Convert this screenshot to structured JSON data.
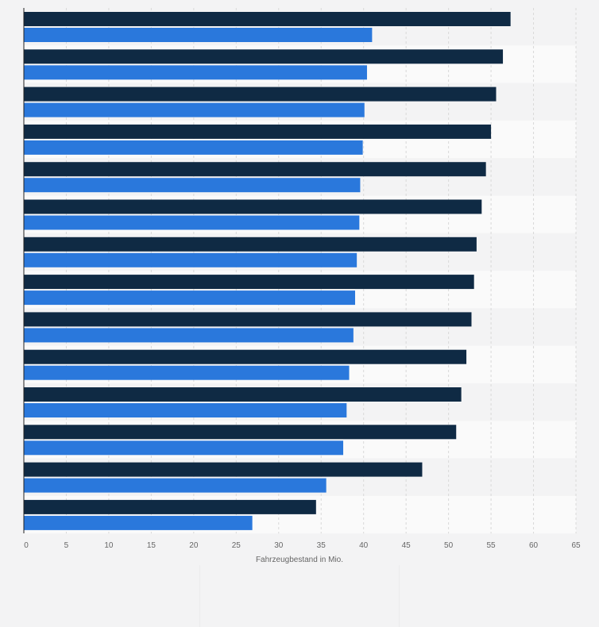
{
  "chart_data": {
    "type": "bar",
    "orientation": "horizontal",
    "xlabel": "Fahrzeugbestand in Mio.",
    "xlim": [
      0,
      65
    ],
    "x_ticks": [
      0,
      5,
      10,
      15,
      20,
      25,
      30,
      35,
      40,
      45,
      50,
      55,
      60,
      65
    ],
    "grid": true,
    "legend": "none",
    "series": [
      {
        "color": "#0f2a44",
        "values": [
          57.3,
          56.4,
          55.6,
          55.0,
          54.4,
          53.9,
          53.3,
          53.0,
          52.7,
          52.1,
          51.5,
          50.9,
          46.9,
          34.4
        ]
      },
      {
        "color": "#2a78dc",
        "values": [
          41.0,
          40.4,
          40.1,
          39.9,
          39.6,
          39.5,
          39.2,
          39.0,
          38.8,
          38.3,
          38.0,
          37.6,
          35.6,
          26.9
        ]
      }
    ]
  }
}
